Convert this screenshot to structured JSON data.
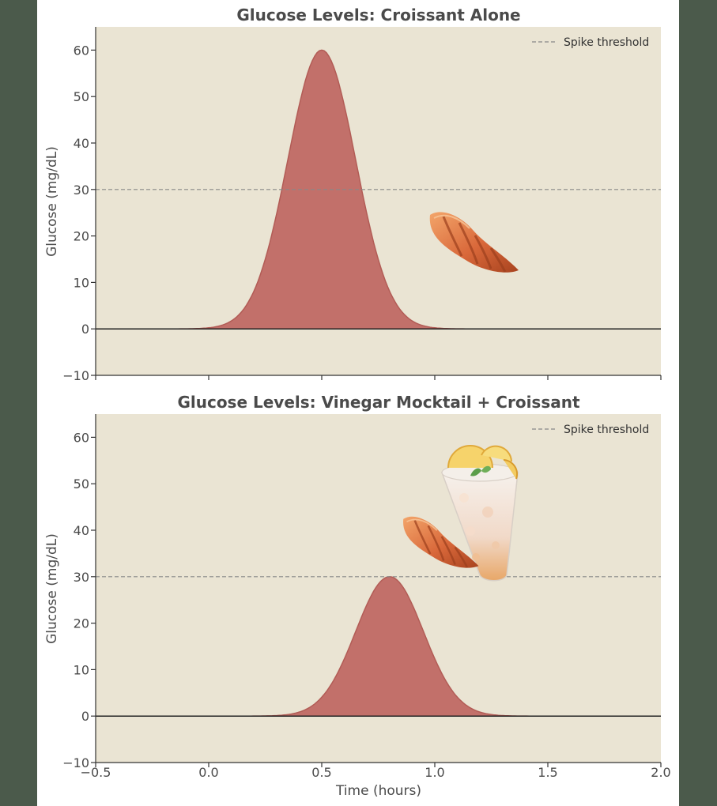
{
  "chart_data": [
    {
      "type": "area",
      "title": "Glucose Levels: Croissant Alone",
      "xlabel": "",
      "ylabel": "Glucose (mg/dL)",
      "xlim": [
        -0.5,
        2.0
      ],
      "ylim": [
        -10,
        65
      ],
      "x_ticks": [],
      "y_ticks": [
        -10,
        0,
        10,
        20,
        30,
        40,
        50,
        60
      ],
      "y_tick_labels": [
        "−10",
        "0",
        "10",
        "20",
        "30",
        "40",
        "50",
        "60"
      ],
      "curve": {
        "peak_x": 0.5,
        "peak_y": 60,
        "sigma": 0.15
      },
      "threshold": {
        "y": 30,
        "label": "Spike threshold"
      },
      "legend_position": "top-right",
      "illustrations": [
        "croissant"
      ],
      "grid": false
    },
    {
      "type": "area",
      "title": "Glucose Levels: Vinegar Mocktail + Croissant",
      "xlabel": "Time (hours)",
      "ylabel": "Glucose (mg/dL)",
      "xlim": [
        -0.5,
        2.0
      ],
      "ylim": [
        -10,
        65
      ],
      "x_ticks": [
        -0.5,
        0.0,
        0.5,
        1.0,
        1.5,
        2.0
      ],
      "x_tick_labels": [
        "−0.5",
        "0.0",
        "0.5",
        "1.0",
        "1.5",
        "2.0"
      ],
      "y_ticks": [
        -10,
        0,
        10,
        20,
        30,
        40,
        50,
        60
      ],
      "y_tick_labels": [
        "−10",
        "0",
        "10",
        "20",
        "30",
        "40",
        "50",
        "60"
      ],
      "curve": {
        "peak_x": 0.8,
        "peak_y": 30,
        "sigma": 0.15
      },
      "threshold": {
        "y": 30,
        "label": "Spike threshold"
      },
      "legend_position": "top-right",
      "illustrations": [
        "croissant",
        "mocktail-glass"
      ],
      "grid": false
    }
  ],
  "colors": {
    "page_background": "#4b5a4b",
    "plot_background": "#eae4d3",
    "area_fill": "#c2706a",
    "area_edge": "#b25c56",
    "threshold": "#888888",
    "text": "#4a4a4a"
  }
}
